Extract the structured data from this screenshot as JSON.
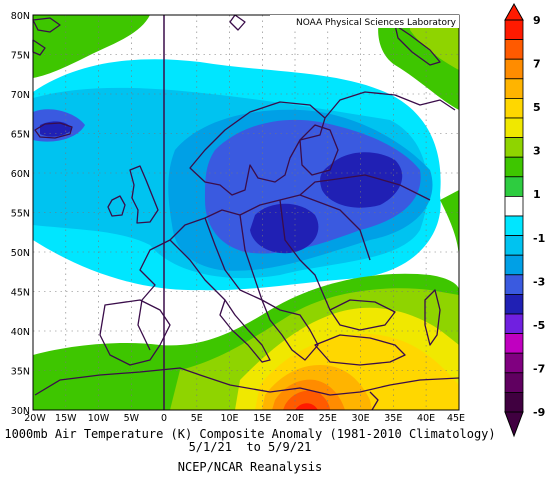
{
  "credit": "NOAA Physical Sciences Laboratory",
  "lat_labels": [
    "80N",
    "75N",
    "70N",
    "65N",
    "60N",
    "55N",
    "50N",
    "45N",
    "40N",
    "35N",
    "30N"
  ],
  "lon_labels": [
    "20W",
    "15W",
    "10W",
    "5W",
    "0",
    "5E",
    "10E",
    "15E",
    "20E",
    "25E",
    "30E",
    "35E",
    "40E",
    "45E"
  ],
  "caption": {
    "line1": "1000mb Air Temperature (K) Composite Anomaly (1981-2010 Climatology)",
    "line2": "5/1/21  to 5/9/21",
    "line3": "NCEP/NCAR Reanalysis"
  },
  "colorbar": {
    "levels": [
      -9,
      -8,
      -7,
      -6,
      -5,
      -4,
      -3,
      -2,
      -1,
      1,
      2,
      3,
      4,
      5,
      6,
      7,
      8,
      9
    ],
    "labels": [
      "9",
      "7",
      "5",
      "3",
      "1",
      "-1",
      "-3",
      "-5",
      "-7",
      "-9"
    ],
    "colors": [
      "#ff1a00",
      "#ff5a00",
      "#ff8c00",
      "#ffb400",
      "#ffd700",
      "#f0e800",
      "#8fd400",
      "#3ec600",
      "#2ecc40",
      "#ffffff",
      "#00e6ff",
      "#00c3f0",
      "#00a0e6",
      "#3a5ae0",
      "#2020b4",
      "#7020e0",
      "#c000c0",
      "#800080",
      "#600060",
      "#400040"
    ]
  },
  "anomaly_colors": {
    "p1": "#3ec600",
    "p3": "#8fd400",
    "p4": "#f0e800",
    "p5": "#ffd700",
    "p6": "#ffb400",
    "p7": "#ff8c00",
    "p8": "#ff5a00",
    "p9": "#ff1a00",
    "n1": "#00e6ff",
    "n2": "#00c3f0",
    "n3": "#00a0e6",
    "n4": "#3a5ae0",
    "n5": "#2020b4"
  }
}
